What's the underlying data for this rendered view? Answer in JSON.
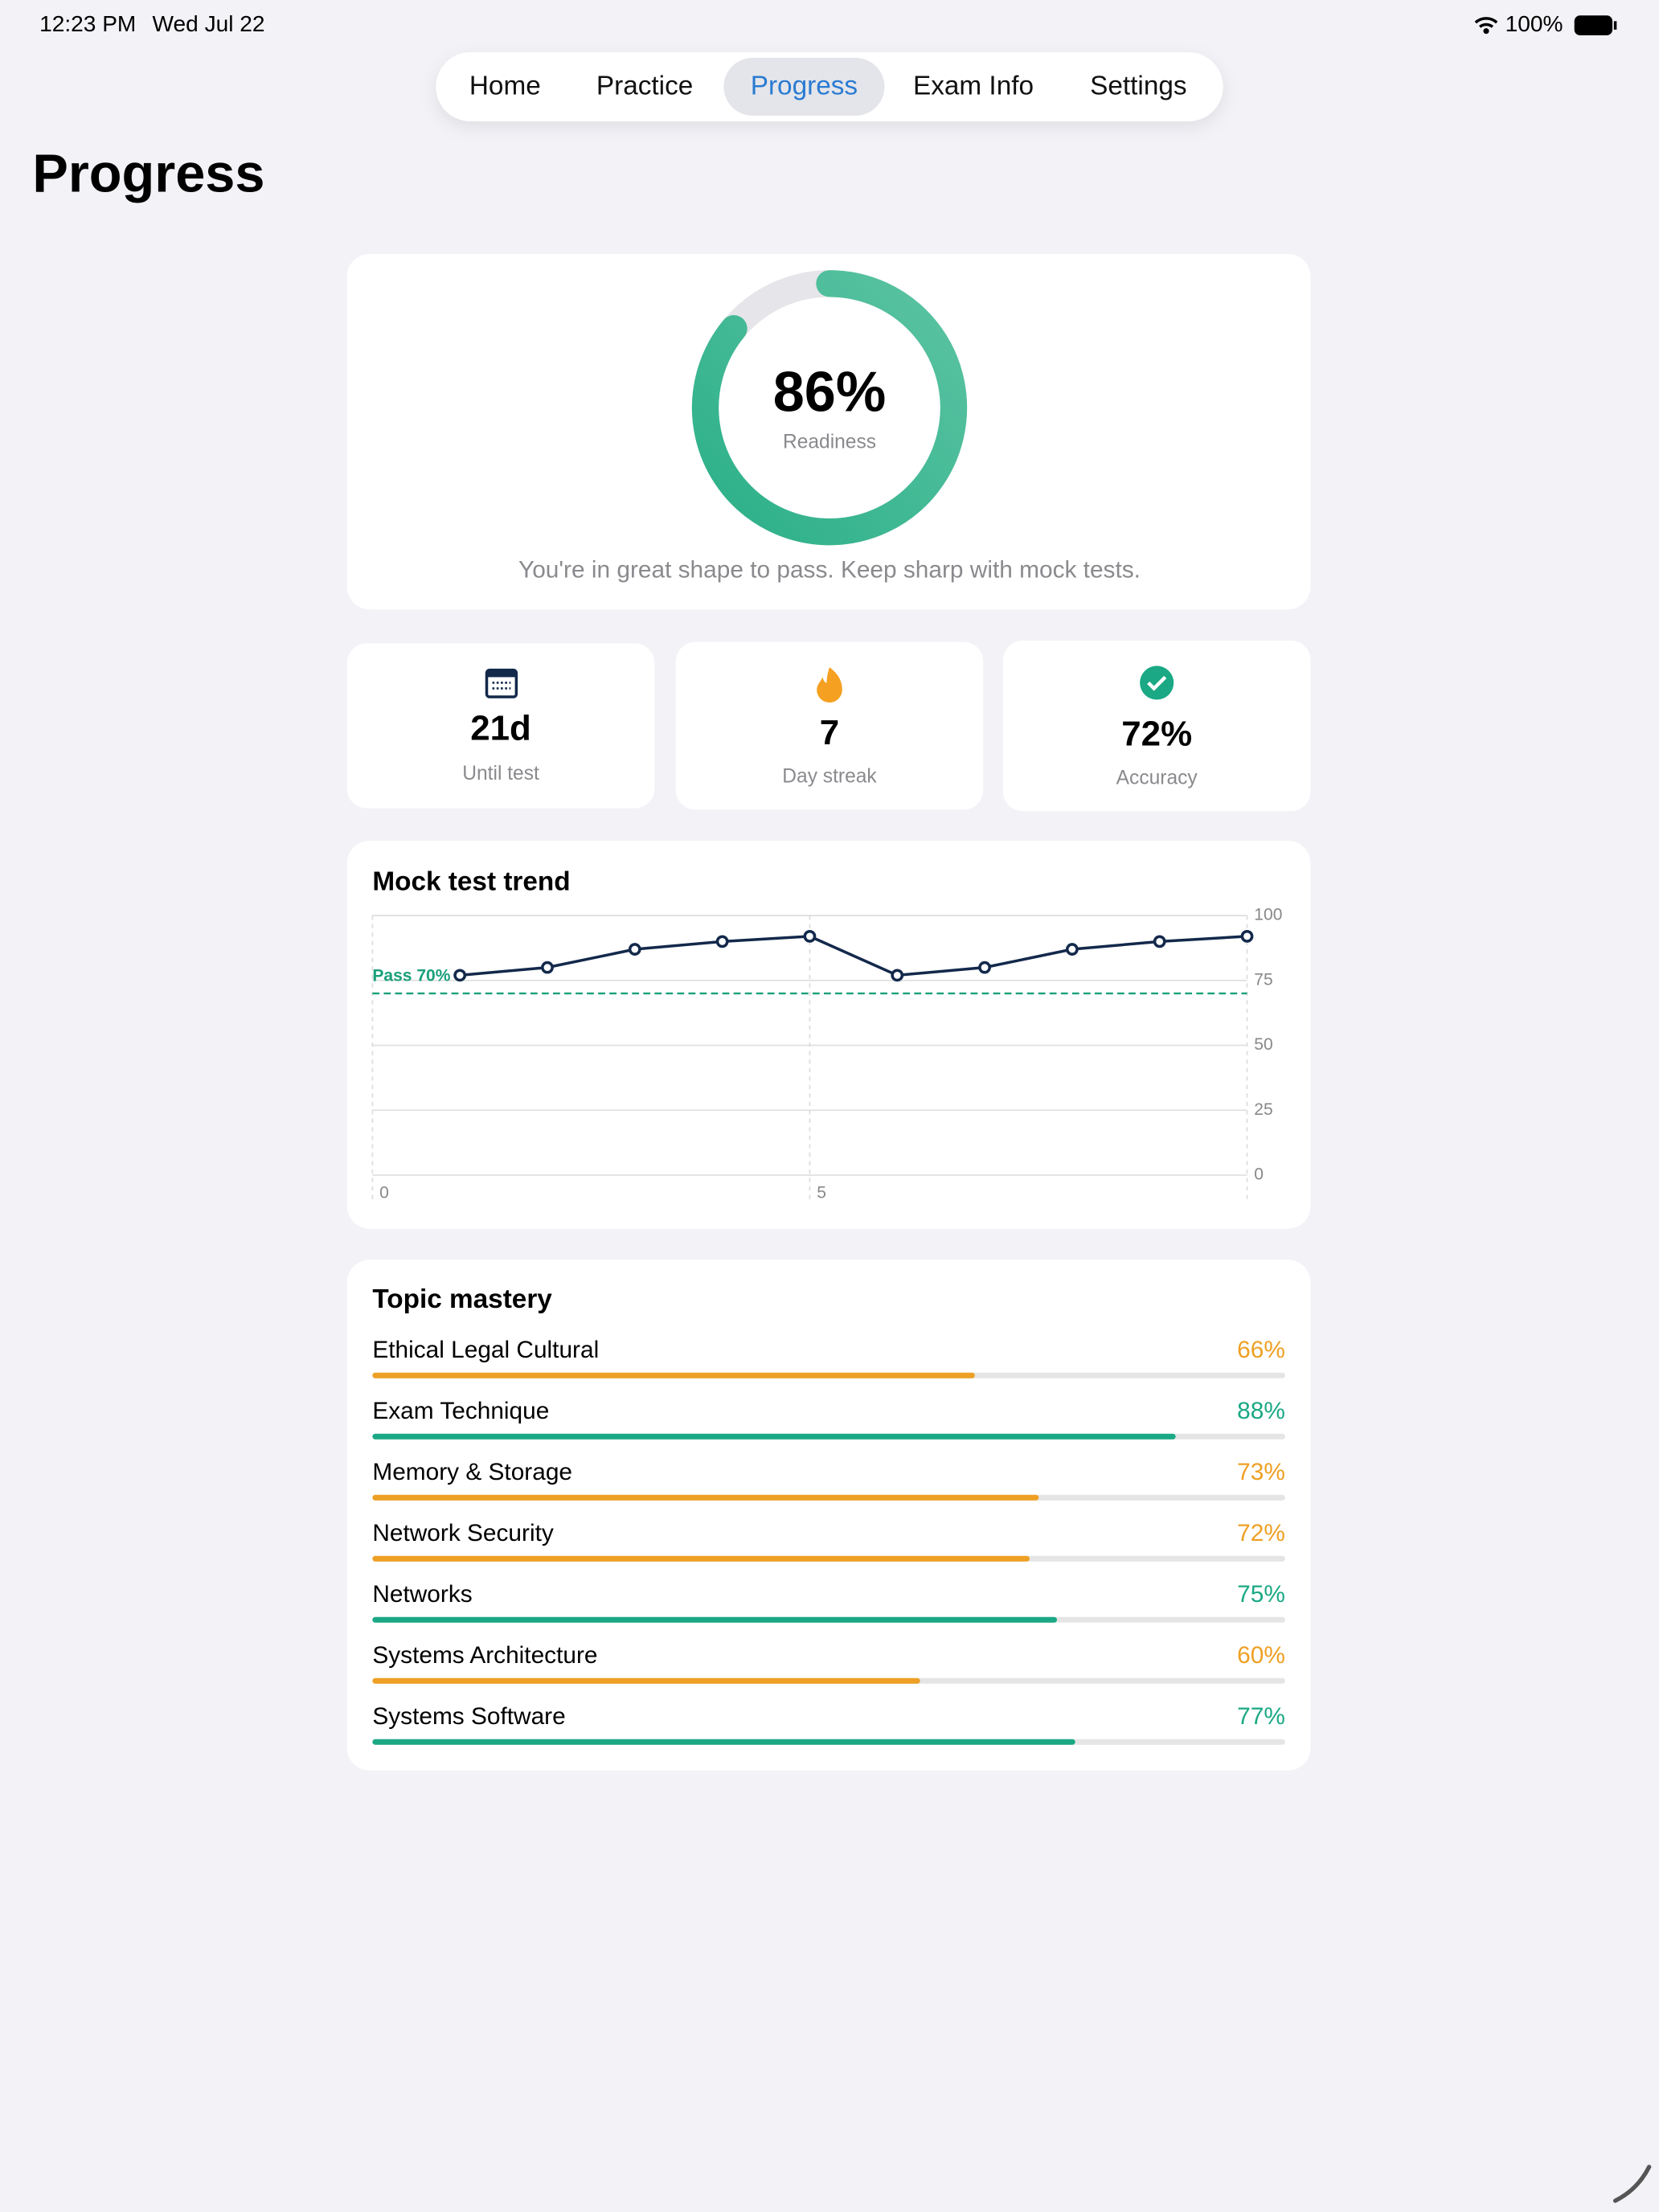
{
  "status_bar": {
    "time": "12:23 PM",
    "date": "Wed Jul 22",
    "battery": "100%"
  },
  "nav": {
    "tabs": [
      "Home",
      "Practice",
      "Progress",
      "Exam Info",
      "Settings"
    ],
    "selected": 2
  },
  "header": {
    "title": "Progress"
  },
  "readiness": {
    "score": {
      "value": 86,
      "label": "86%"
    },
    "label": "Readiness",
    "message": "You're in great shape to pass. Keep sharp with mock tests."
  },
  "stats": [
    {
      "value": "21d",
      "label": "Until test"
    },
    {
      "value": "7",
      "label": "Day streak"
    },
    {
      "value": "72%",
      "label": "Accuracy"
    }
  ],
  "chart_data": {
    "type": "line",
    "title": "Mock test trend",
    "x": [
      1,
      2,
      3,
      4,
      5,
      6,
      7,
      8,
      9,
      10
    ],
    "values": [
      77,
      80,
      87,
      90,
      92,
      77,
      80,
      87,
      90,
      92
    ],
    "color": "#13294b",
    "xlim": [
      0,
      10
    ],
    "xticks": [
      0,
      5
    ],
    "ylim": [
      0,
      100
    ],
    "yticks": [
      0,
      25,
      50,
      75,
      100
    ],
    "grid": true,
    "threshold": {
      "value": 70,
      "label": "Pass 70%",
      "color": "#1aa07a"
    }
  },
  "topics": {
    "title": "Topic mastery",
    "items": [
      {
        "name": "Ethical Legal Cultural",
        "value": 66,
        "label": "66%",
        "color": "#eea024"
      },
      {
        "name": "Exam Technique",
        "value": 88,
        "label": "88%",
        "color": "#1aa984"
      },
      {
        "name": "Memory & Storage",
        "value": 73,
        "label": "73%",
        "color": "#eea024"
      },
      {
        "name": "Network Security",
        "value": 72,
        "label": "72%",
        "color": "#eea024"
      },
      {
        "name": "Networks",
        "value": 75,
        "label": "75%",
        "color": "#1aa984"
      },
      {
        "name": "Systems Architecture",
        "value": 60,
        "label": "60%",
        "color": "#eea024"
      },
      {
        "name": "Systems Software",
        "value": 77,
        "label": "77%",
        "color": "#1aa984"
      }
    ]
  }
}
